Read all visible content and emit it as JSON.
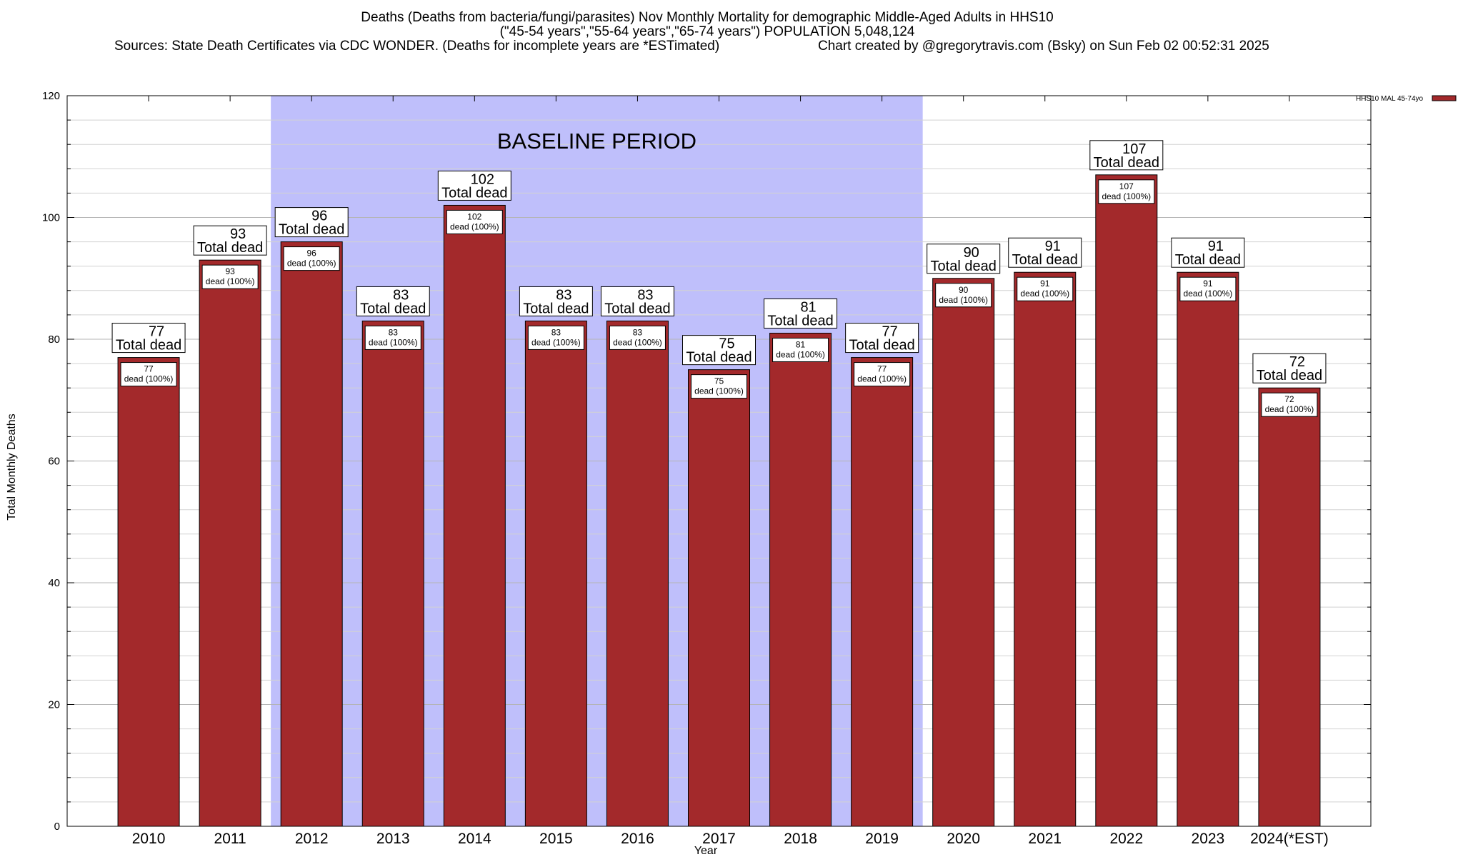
{
  "chart_data": {
    "type": "bar",
    "title_lines": [
      "Deaths (Deaths from bacteria/fungi/parasites) Nov Monthly Mortality for demographic Middle-Aged Adults in HHS10",
      "(\"45-54 years\",\"55-64 years\",\"65-74 years\") POPULATION 5,048,124"
    ],
    "sources": "Sources: State Death Certificates via CDC WONDER. (Deaths for incomplete years are *ESTimated)",
    "credit": "Chart created by @gregorytravis.com (Bsky) on Sun Feb 02 00:52:31 2025",
    "xlabel": "Year",
    "ylabel": "Total Monthly Deaths",
    "ylim": [
      0,
      120
    ],
    "y_ticks": [
      0,
      20,
      40,
      60,
      80,
      100,
      120
    ],
    "y_minor_step": 4,
    "grid": true,
    "legend": {
      "label": "HHS10 MAL 45-74yo",
      "position": "top-right",
      "color": "#a3292b"
    },
    "bar_color": "#a3292b",
    "baseline_color": "#bfbffb",
    "baseline_label": "BASELINE PERIOD",
    "baseline_range": [
      "2012",
      "2019"
    ],
    "total_label_suffix": "Total dead",
    "inner_label_suffix": "dead (100%)",
    "categories": [
      "2010",
      "2011",
      "2012",
      "2013",
      "2014",
      "2015",
      "2016",
      "2017",
      "2018",
      "2019",
      "2020",
      "2021",
      "2022",
      "2023",
      "2024(*EST)"
    ],
    "series": [
      {
        "name": "HHS10 MAL 45-74yo",
        "values": [
          77,
          93,
          96,
          83,
          102,
          83,
          83,
          75,
          81,
          77,
          90,
          91,
          107,
          91,
          72
        ]
      }
    ]
  }
}
